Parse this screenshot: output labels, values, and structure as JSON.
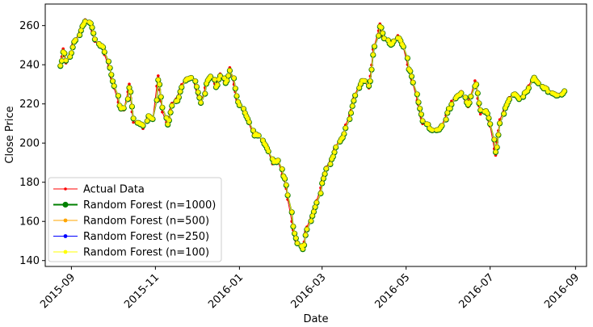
{
  "chart_data": {
    "type": "line",
    "title": "",
    "xlabel": "Date",
    "ylabel": "Close Price",
    "x_range": [
      "2015-08-13",
      "2016-09-09"
    ],
    "ylim": [
      137,
      271
    ],
    "grid": false,
    "legend_placement": "bottom-left",
    "x_ticks": [
      "2015-09-01",
      "2015-11-01",
      "2016-01-01",
      "2016-03-01",
      "2016-05-01",
      "2016-07-01",
      "2016-09-01"
    ],
    "x_tick_labels": [
      "2015-09",
      "2015-11",
      "2016-01",
      "2016-03",
      "2016-05",
      "2016-07",
      "2016-09"
    ],
    "y_ticks": [
      140,
      160,
      180,
      200,
      220,
      240,
      260
    ],
    "legend": [
      {
        "name": "Actual Data",
        "color": "#ff0000",
        "marker": "dot",
        "linewidth": 1
      },
      {
        "name": "Random Forest (n=1000)",
        "color": "#008000",
        "marker": "circle-large",
        "linewidth": 2
      },
      {
        "name": "Random Forest (n=500)",
        "color": "#ffa500",
        "marker": "circle",
        "linewidth": 1
      },
      {
        "name": "Random Forest (n=250)",
        "color": "#0000ff",
        "marker": "circle",
        "linewidth": 1
      },
      {
        "name": "Random Forest (n=100)",
        "color": "#ffff00",
        "marker": "circle",
        "linewidth": 1
      }
    ],
    "series_keypoints": {
      "name": "Actual Data",
      "x": [
        "2015-08-24",
        "2015-08-26",
        "2015-08-28",
        "2015-09-01",
        "2015-09-03",
        "2015-09-08",
        "2015-09-11",
        "2015-09-15",
        "2015-09-18",
        "2015-09-22",
        "2015-09-25",
        "2015-09-29",
        "2015-10-02",
        "2015-10-06",
        "2015-10-09",
        "2015-10-13",
        "2015-10-16",
        "2015-10-20",
        "2015-10-23",
        "2015-10-27",
        "2015-10-30",
        "2015-11-03",
        "2015-11-06",
        "2015-11-10",
        "2015-11-13",
        "2015-11-17",
        "2015-11-20",
        "2015-11-24",
        "2015-11-27",
        "2015-12-01",
        "2015-12-04",
        "2015-12-08",
        "2015-12-11",
        "2015-12-15",
        "2015-12-18",
        "2015-12-22",
        "2015-12-26",
        "2015-12-30",
        "2016-01-04",
        "2016-01-08",
        "2016-01-12",
        "2016-01-15",
        "2016-01-20",
        "2016-01-25",
        "2016-01-29",
        "2016-02-03",
        "2016-02-08",
        "2016-02-11",
        "2016-02-16",
        "2016-02-19",
        "2016-02-24",
        "2016-02-29",
        "2016-03-03",
        "2016-03-08",
        "2016-03-11",
        "2016-03-16",
        "2016-03-21",
        "2016-03-25",
        "2016-03-30",
        "2016-04-04",
        "2016-04-07",
        "2016-04-12",
        "2016-04-15",
        "2016-04-20",
        "2016-04-25",
        "2016-04-29",
        "2016-05-04",
        "2016-05-09",
        "2016-05-13",
        "2016-05-18",
        "2016-05-23",
        "2016-05-27",
        "2016-06-01",
        "2016-06-06",
        "2016-06-10",
        "2016-06-15",
        "2016-06-20",
        "2016-06-24",
        "2016-06-29",
        "2016-07-05",
        "2016-07-08",
        "2016-07-13",
        "2016-07-18",
        "2016-07-22",
        "2016-07-27",
        "2016-08-01",
        "2016-08-05",
        "2016-08-10",
        "2016-08-15",
        "2016-08-19",
        "2016-08-24"
      ],
      "y": [
        239,
        249,
        241,
        247,
        252,
        258,
        263,
        261,
        252,
        250,
        246,
        237,
        228,
        218,
        217,
        230,
        210,
        211,
        208,
        214,
        212,
        234,
        216,
        210,
        220,
        222,
        230,
        233,
        234,
        228,
        219,
        230,
        234,
        229,
        236,
        230,
        240,
        222,
        216,
        210,
        203,
        205,
        198,
        190,
        192,
        180,
        160,
        150,
        146,
        158,
        166,
        178,
        186,
        192,
        198,
        204,
        215,
        226,
        232,
        228,
        247,
        260,
        252,
        250,
        254,
        248,
        235,
        222,
        210,
        208,
        205,
        210,
        218,
        224,
        226,
        219,
        232,
        215,
        216,
        194,
        213,
        220,
        226,
        223,
        226,
        234,
        230,
        227,
        224,
        225,
        226
      ]
    }
  }
}
